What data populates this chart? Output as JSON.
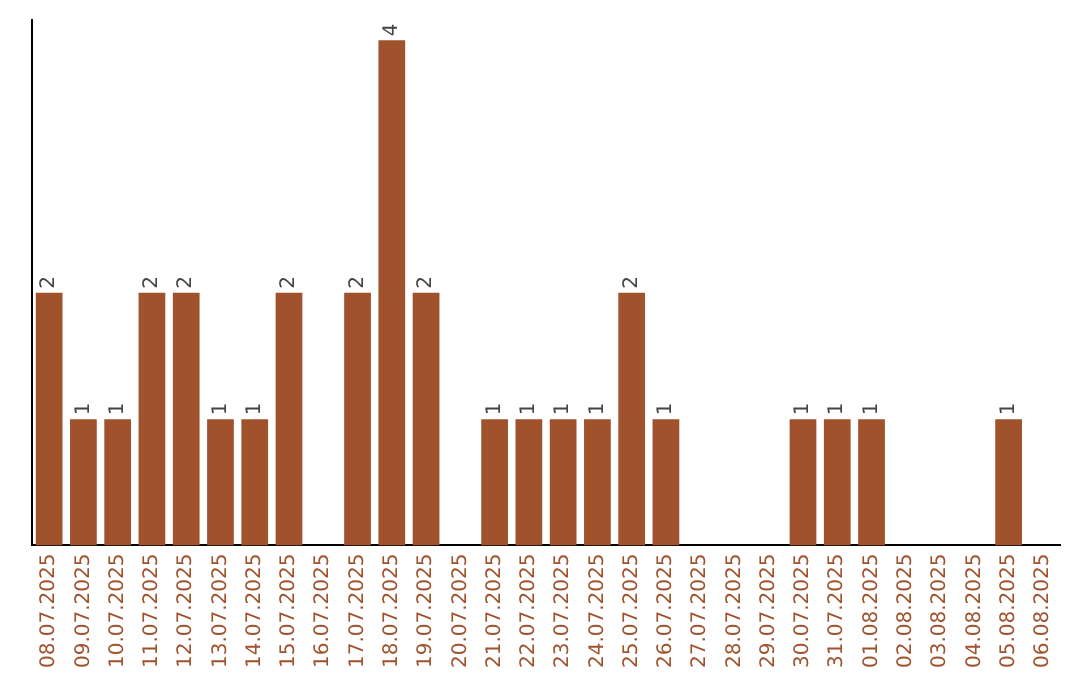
{
  "chart_data": {
    "type": "bar",
    "categories": [
      "08.07.2025",
      "09.07.2025",
      "10.07.2025",
      "11.07.2025",
      "12.07.2025",
      "13.07.2025",
      "14.07.2025",
      "15.07.2025",
      "16.07.2025",
      "17.07.2025",
      "18.07.2025",
      "19.07.2025",
      "20.07.2025",
      "21.07.2025",
      "22.07.2025",
      "23.07.2025",
      "24.07.2025",
      "25.07.2025",
      "26.07.2025",
      "27.07.2025",
      "28.07.2025",
      "29.07.2025",
      "30.07.2025",
      "31.07.2025",
      "01.08.2025",
      "02.08.2025",
      "03.08.2025",
      "04.08.2025",
      "05.08.2025",
      "06.08.2025"
    ],
    "values": [
      2,
      1,
      1,
      2,
      2,
      1,
      1,
      2,
      0,
      2,
      4,
      2,
      0,
      1,
      1,
      1,
      1,
      2,
      1,
      0,
      0,
      0,
      1,
      1,
      1,
      0,
      0,
      0,
      1,
      0
    ],
    "value_labels": [
      "2",
      "1",
      "1",
      "2",
      "2",
      "1",
      "1",
      "2",
      null,
      "2",
      "4",
      "2",
      null,
      "1",
      "1",
      "1",
      "1",
      "2",
      "1",
      null,
      null,
      null,
      "1",
      "1",
      "1",
      null,
      null,
      null,
      "1",
      null
    ],
    "color": "#a0522d",
    "grid": false,
    "legend": false
  }
}
